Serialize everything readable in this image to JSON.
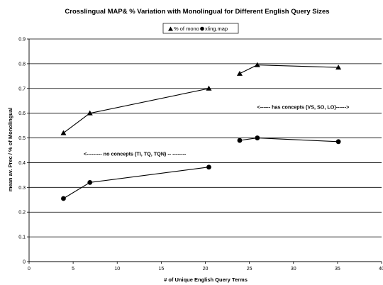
{
  "chart_data": {
    "type": "line",
    "title": "Crosslingual MAP& % Variation with Monolingual for Different English Query Sizes",
    "xlabel": "# of Unique English Query Terms",
    "ylabel": "mean av. Prec / % of Monolingual",
    "xlim": [
      0,
      40
    ],
    "ylim": [
      0,
      0.9
    ],
    "x_ticks": [
      "0",
      "5",
      "10",
      "15",
      "20",
      "25",
      "30",
      "35",
      "40"
    ],
    "y_ticks": [
      "0",
      "0.1",
      "0.2",
      "0.3",
      "0.4",
      "0.5",
      "0.6",
      "0.7",
      "0.8",
      "0.9"
    ],
    "grid": "horizontal",
    "legend_position": "top-center",
    "series": [
      {
        "name": "% of mono",
        "marker": "triangle",
        "color": "#000000",
        "groups": [
          [
            {
              "x": 3.9,
              "y": 0.52
            },
            {
              "x": 6.9,
              "y": 0.6
            },
            {
              "x": 20.4,
              "y": 0.7
            }
          ],
          [
            {
              "x": 23.9,
              "y": 0.76
            },
            {
              "x": 25.9,
              "y": 0.795
            },
            {
              "x": 35.1,
              "y": 0.785
            }
          ]
        ]
      },
      {
        "name": "xling.map",
        "marker": "circle",
        "color": "#000000",
        "groups": [
          [
            {
              "x": 3.9,
              "y": 0.255
            },
            {
              "x": 6.9,
              "y": 0.32
            },
            {
              "x": 20.4,
              "y": 0.382
            }
          ],
          [
            {
              "x": 23.9,
              "y": 0.49
            },
            {
              "x": 25.9,
              "y": 0.5
            },
            {
              "x": 35.1,
              "y": 0.485
            }
          ]
        ]
      }
    ],
    "annotations": [
      {
        "text": "<------ has concepts (VS, SO, LO)------>",
        "x": 31.1,
        "y": 0.625
      },
      {
        "text": "<--------- no concepts (TI, TQ, TQN) -- --------",
        "x": 12.0,
        "y": 0.435
      }
    ]
  }
}
